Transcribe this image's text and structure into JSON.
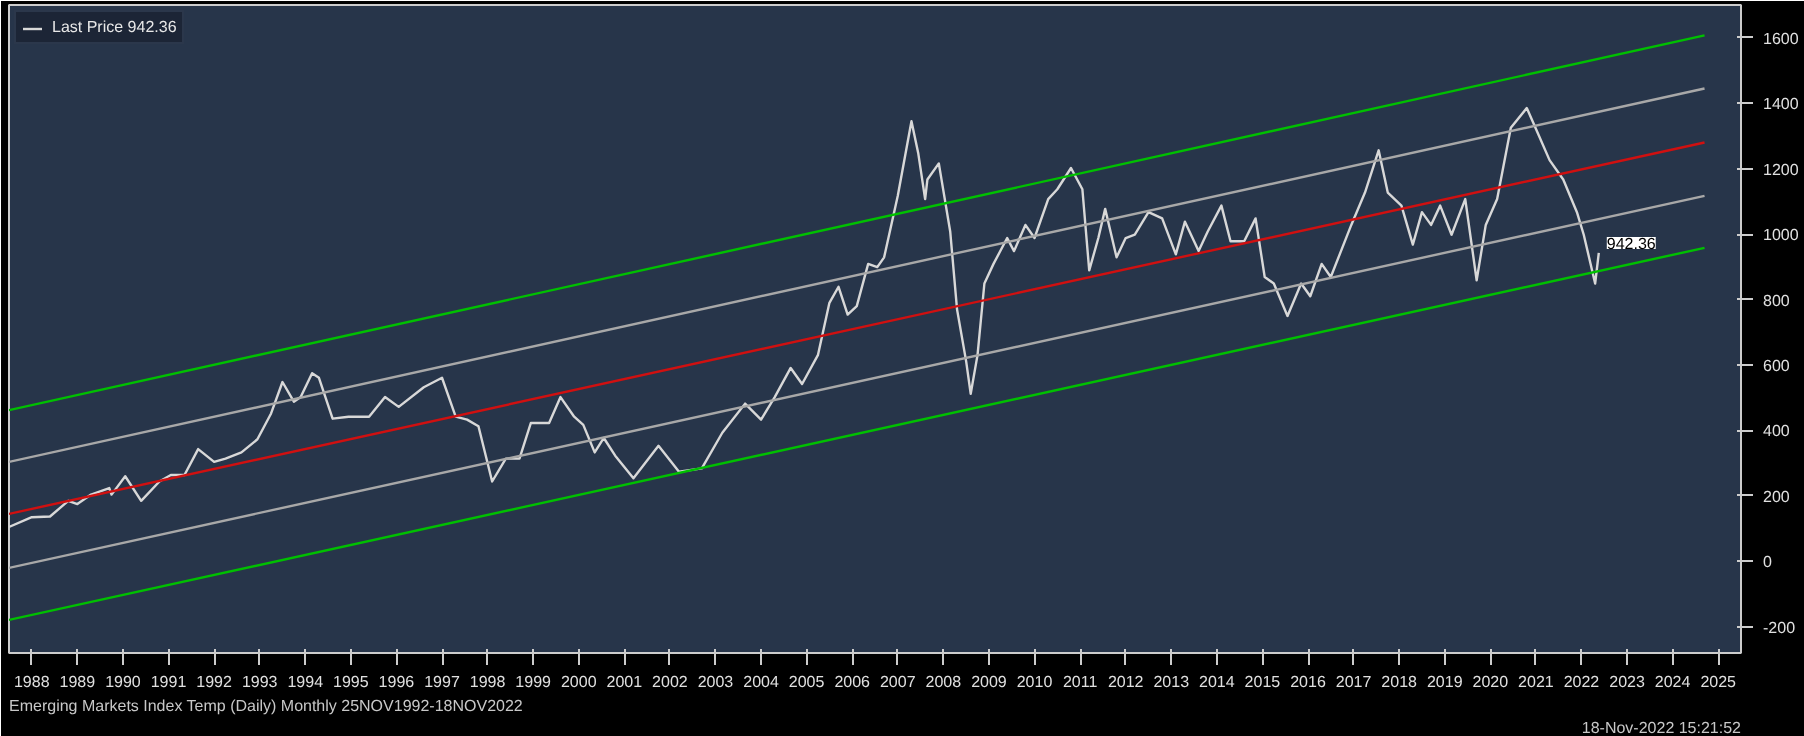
{
  "chart_data": {
    "type": "line",
    "xlim": [
      1988,
      2026
    ],
    "ylim": [
      -280,
      1700
    ],
    "xticks": [
      {
        "value": 1988.5,
        "label": "1988"
      },
      {
        "value": 1989.5,
        "label": "1989"
      },
      {
        "value": 1990.5,
        "label": "1990"
      },
      {
        "value": 1991.5,
        "label": "1991"
      },
      {
        "value": 1992.5,
        "label": "1992"
      },
      {
        "value": 1993.5,
        "label": "1993"
      },
      {
        "value": 1994.5,
        "label": "1994"
      },
      {
        "value": 1995.5,
        "label": "1995"
      },
      {
        "value": 1996.5,
        "label": "1996"
      },
      {
        "value": 1997.5,
        "label": "1997"
      },
      {
        "value": 1998.5,
        "label": "1998"
      },
      {
        "value": 1999.5,
        "label": "1999"
      },
      {
        "value": 2000.5,
        "label": "2000"
      },
      {
        "value": 2001.5,
        "label": "2001"
      },
      {
        "value": 2002.5,
        "label": "2002"
      },
      {
        "value": 2003.5,
        "label": "2003"
      },
      {
        "value": 2004.5,
        "label": "2004"
      },
      {
        "value": 2005.5,
        "label": "2005"
      },
      {
        "value": 2006.5,
        "label": "2006"
      },
      {
        "value": 2007.5,
        "label": "2007"
      },
      {
        "value": 2008.5,
        "label": "2008"
      },
      {
        "value": 2009.5,
        "label": "2009"
      },
      {
        "value": 2010.5,
        "label": "2010"
      },
      {
        "value": 2011.5,
        "label": "2011"
      },
      {
        "value": 2012.5,
        "label": "2012"
      },
      {
        "value": 2013.5,
        "label": "2013"
      },
      {
        "value": 2014.5,
        "label": "2014"
      },
      {
        "value": 2015.5,
        "label": "2015"
      },
      {
        "value": 2016.5,
        "label": "2016"
      },
      {
        "value": 2017.5,
        "label": "2017"
      },
      {
        "value": 2018.5,
        "label": "2018"
      },
      {
        "value": 2019.5,
        "label": "2019"
      },
      {
        "value": 2020.5,
        "label": "2020"
      },
      {
        "value": 2021.5,
        "label": "2021"
      },
      {
        "value": 2022.5,
        "label": "2022"
      },
      {
        "value": 2023.5,
        "label": "2023"
      },
      {
        "value": 2024.5,
        "label": "2024"
      },
      {
        "value": 2025.5,
        "label": "2025"
      }
    ],
    "yticks": [
      -200,
      0,
      200,
      400,
      600,
      800,
      1000,
      1200,
      1400,
      1600
    ],
    "grid": false,
    "legend": "top left",
    "line_style": "solid",
    "marker": "none",
    "series": [
      {
        "name": "Last Price 942.36",
        "color": "#d8d8d8",
        "x": [
          1988.0,
          1988.5,
          1988.9,
          1989.3,
          1989.5,
          1989.8,
          1990.2,
          1990.25,
          1990.55,
          1990.9,
          1991.3,
          1991.55,
          1991.85,
          1992.15,
          1992.5,
          1992.75,
          1993.1,
          1993.45,
          1993.75,
          1994.0,
          1994.25,
          1994.4,
          1994.65,
          1994.8,
          1995.1,
          1995.45,
          1995.9,
          1996.25,
          1996.55,
          1997.1,
          1997.5,
          1997.8,
          1998.05,
          1998.3,
          1998.6,
          1998.9,
          1999.2,
          1999.45,
          1999.85,
          2000.1,
          2000.4,
          2000.6,
          2000.85,
          2001.05,
          2001.3,
          2001.7,
          2002.25,
          2002.7,
          2003.2,
          2003.65,
          2004.15,
          2004.5,
          2004.8,
          2005.15,
          2005.4,
          2005.75,
          2006.0,
          2006.2,
          2006.4,
          2006.6,
          2006.85,
          2007.05,
          2007.2,
          2007.5,
          2007.8,
          2007.95,
          2008.1,
          2008.15,
          2008.4,
          2008.65,
          2008.8,
          2009.0,
          2009.1,
          2009.25,
          2009.4,
          2009.6,
          2009.9,
          2010.05,
          2010.3,
          2010.5,
          2010.8,
          2011.0,
          2011.3,
          2011.55,
          2011.7,
          2011.9,
          2012.05,
          2012.3,
          2012.5,
          2012.7,
          2013.0,
          2013.3,
          2013.6,
          2013.8,
          2014.1,
          2014.3,
          2014.6,
          2014.8,
          2015.1,
          2015.35,
          2015.55,
          2015.75,
          2016.05,
          2016.35,
          2016.55,
          2016.8,
          2017.0,
          2017.45,
          2017.75,
          2018.05,
          2018.25,
          2018.55,
          2018.8,
          2019.0,
          2019.2,
          2019.4,
          2019.65,
          2019.95,
          2020.2,
          2020.4,
          2020.65,
          2020.95,
          2021.3,
          2021.55,
          2021.8,
          2022.1,
          2022.4,
          2022.55,
          2022.8,
          2022.88
        ],
        "values": [
          105,
          135,
          137,
          185,
          175,
          204,
          224,
          204,
          260,
          185,
          244,
          264,
          264,
          343,
          304,
          314,
          333,
          373,
          452,
          548,
          488,
          502,
          575,
          561,
          436,
          442,
          442,
          502,
          472,
          532,
          561,
          442,
          433,
          413,
          244,
          314,
          314,
          423,
          423,
          502,
          442,
          417,
          333,
          377,
          323,
          254,
          353,
          274,
          284,
          393,
          482,
          433,
          502,
          591,
          542,
          631,
          790,
          839,
          754,
          780,
          909,
          899,
          929,
          1117,
          1345,
          1246,
          1107,
          1167,
          1216,
          1008,
          770,
          611,
          512,
          631,
          849,
          909,
          988,
          948,
          1028,
          988,
          1107,
          1137,
          1202,
          1137,
          889,
          988,
          1077,
          929,
          988,
          998,
          1067,
          1048,
          938,
          1038,
          948,
          1008,
          1087,
          978,
          978,
          1048,
          869,
          849,
          750,
          849,
          810,
          909,
          869,
          1028,
          1127,
          1256,
          1127,
          1087,
          968,
          1067,
          1028,
          1087,
          998,
          1107,
          859,
          1028,
          1107,
          1325,
          1385,
          1306,
          1226,
          1167,
          1067,
          998,
          849,
          942.36
        ]
      },
      {
        "color": "#00c000",
        "x": [
          1988.0,
          2025.2
        ],
        "values": [
          462,
          1607
        ]
      },
      {
        "color": "#a8a8a8",
        "x": [
          1988.0,
          2025.2
        ],
        "values": [
          304,
          1445
        ]
      },
      {
        "color": "#d01010",
        "x": [
          1988.0,
          2025.2
        ],
        "values": [
          145,
          1280
        ]
      },
      {
        "color": "#a8a8a8",
        "x": [
          1988.0,
          2025.2
        ],
        "values": [
          -20,
          1117
        ]
      },
      {
        "color": "#00c000",
        "x": [
          1988.0,
          2025.2
        ],
        "values": [
          -179,
          958
        ]
      }
    ],
    "annotations": [
      {
        "text": "942.36",
        "x": 2022.88,
        "y": 942.36
      },
      "Emerging Markets Index Temp (Daily)  Monthly 25NOV1992-18NOV2022",
      "18-Nov-2022 15:21:52"
    ]
  }
}
